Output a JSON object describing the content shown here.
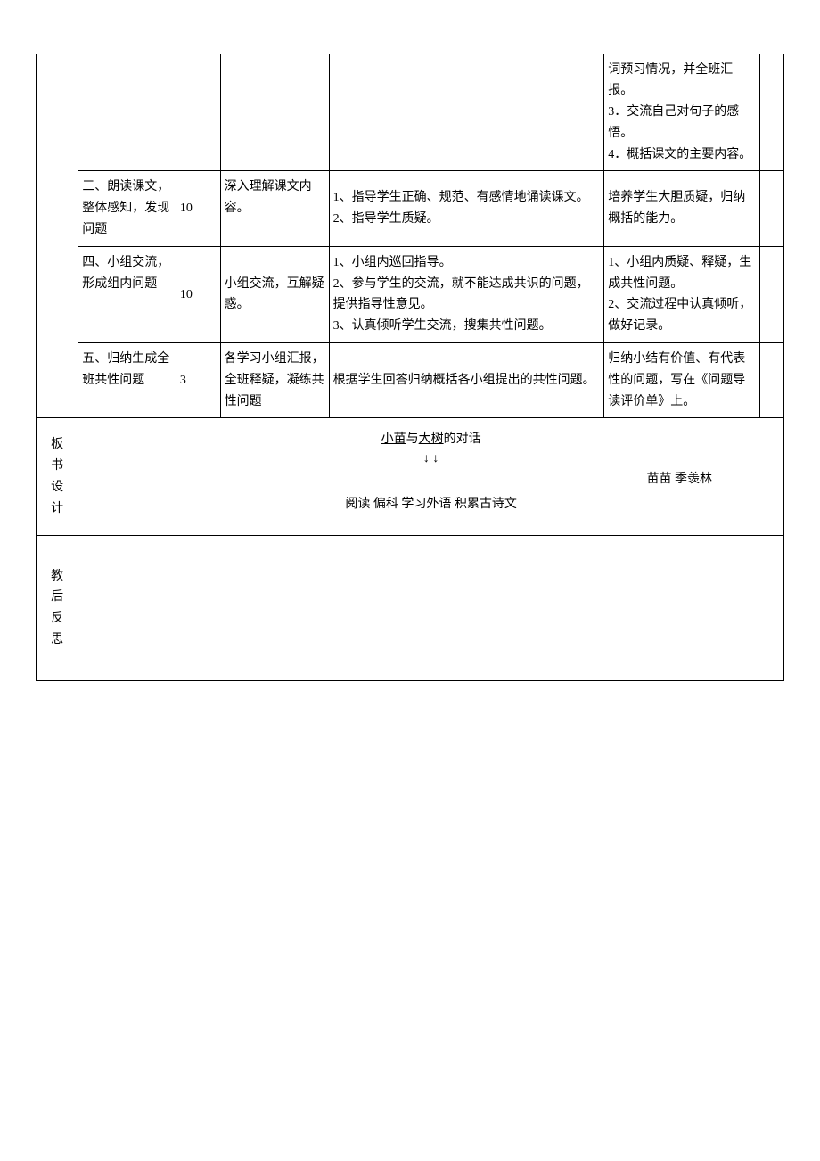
{
  "rows": [
    {
      "c1": "",
      "c2": "",
      "c3": "",
      "c4": "",
      "c5": "词预习情况，并全班汇报。\n3．交流自己对句子的感悟。\n4．概括课文的主要内容。",
      "c6": ""
    },
    {
      "c1": "三、朗读课文，整体感知，发现问题",
      "c2": "10",
      "c3": "深入理解课文内容。",
      "c4": "1、指导学生正确、规范、有感情地诵读课文。\n2、指导学生质疑。",
      "c5": "培养学生大胆质疑，归纳概括的能力。",
      "c6": ""
    },
    {
      "c1": "四、小组交流，形成组内问题",
      "c2": "10",
      "c3": "小组交流，互解疑惑。",
      "c4": "1、小组内巡回指导。\n2、参与学生的交流，就不能达成共识的问题，提供指导性意见。\n3、认真倾听学生交流，搜集共性问题。",
      "c5": "1、小组内质疑、释疑，生成共性问题。\n2、交流过程中认真倾听，做好记录。",
      "c6": ""
    },
    {
      "c1": "五、归纳生成全班共性问题",
      "c2": "3",
      "c3": "各学习小组汇报，全班释疑，凝练共性问题",
      "c4": "根据学生回答归纳概括各小组提出的共性问题。",
      "c5": "归纳小结有价值、有代表性的问题，写在《问题导读评价单》上。",
      "c6": ""
    }
  ],
  "board": {
    "label": "板书设计",
    "title_prefix": "小苗",
    "title_mid": "与",
    "title_suffix": "大树",
    "title_tail": "的对话",
    "arrows": "↓        ↓",
    "names": "苗苗   季羡林",
    "keywords": "阅读  偏科 学习外语 积累古诗文"
  },
  "reflection": {
    "label": "教后反思"
  },
  "colors": {
    "border": "#000000",
    "text": "#000000",
    "bg": "#ffffff"
  }
}
